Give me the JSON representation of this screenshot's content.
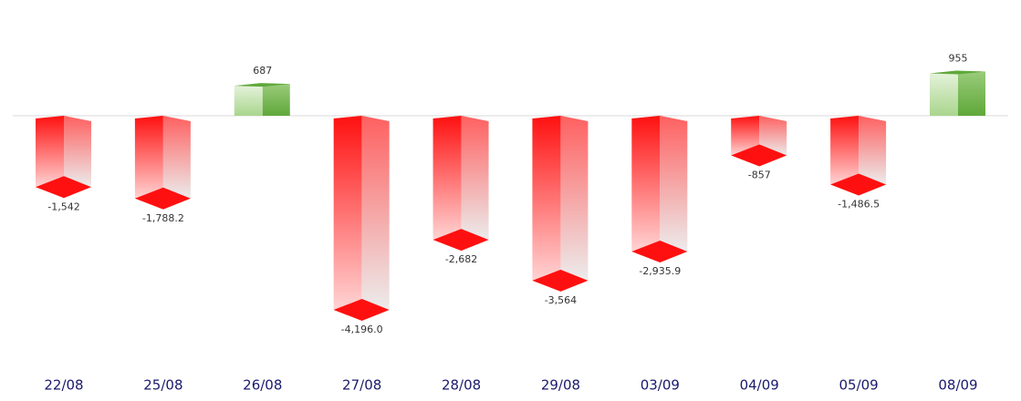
{
  "chart_data": {
    "type": "bar3d",
    "categories": [
      "22/08",
      "25/08",
      "26/08",
      "27/08",
      "28/08",
      "29/08",
      "03/09",
      "04/09",
      "05/09",
      "08/09"
    ],
    "values": [
      -1542,
      -1788.2,
      687,
      -4196.0,
      -2682,
      -3564,
      -2935.9,
      -857,
      -1486.5,
      955
    ],
    "value_labels": [
      "-1,542",
      "-1,788.2",
      "687",
      "-4,196.0",
      "-2,682",
      "-3,564",
      "-2,935.9",
      "-857",
      "-1,486.5",
      "955"
    ],
    "colors": {
      "negative": "#ff1010",
      "positive": "#5fa83a"
    }
  }
}
